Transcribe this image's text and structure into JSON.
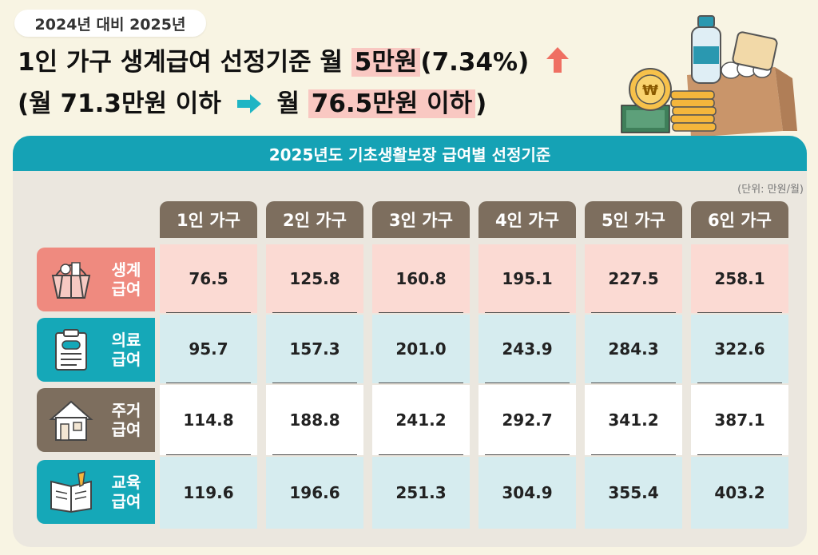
{
  "badge": "2024년 대비 2025년",
  "headline": {
    "line1_prefix": "1인 가구 생계급여 선정기준 월 ",
    "line1_highlight": "5만원",
    "line1_suffix": "(7.34%)",
    "line2_prefix": "(월 71.3만원 이하",
    "line2_mid": "월 ",
    "line2_highlight": "76.5만원 이하",
    "line2_suffix": ")"
  },
  "table_title": "2025년도 기초생활보장 급여별 선정기준",
  "unit_label": "(단위: 만원/월)",
  "columns": [
    "1인 가구",
    "2인 가구",
    "3인 가구",
    "4인 가구",
    "5인 가구",
    "6인 가구"
  ],
  "rows": [
    {
      "label_top": "생계",
      "label_bottom": "급여",
      "icon": "shopping-basket-icon",
      "label_color": "#ef8a7f",
      "cell_color": "#fbdad3",
      "values": [
        "76.5",
        "125.8",
        "160.8",
        "195.1",
        "227.5",
        "258.1"
      ]
    },
    {
      "label_top": "의료",
      "label_bottom": "급여",
      "icon": "medical-chart-icon",
      "label_color": "#15a8b8",
      "cell_color": "#d6ecef",
      "values": [
        "95.7",
        "157.3",
        "201.0",
        "243.9",
        "284.3",
        "322.6"
      ]
    },
    {
      "label_top": "주거",
      "label_bottom": "급여",
      "icon": "house-icon",
      "label_color": "#7d6e5e",
      "cell_color": "#ffffff",
      "values": [
        "114.8",
        "188.8",
        "241.2",
        "292.7",
        "341.2",
        "387.1"
      ]
    },
    {
      "label_top": "교육",
      "label_bottom": "급여",
      "icon": "open-book-icon",
      "label_color": "#15a8b8",
      "cell_color": "#d6ecef",
      "values": [
        "119.6",
        "196.6",
        "251.3",
        "304.9",
        "355.4",
        "403.2"
      ]
    }
  ],
  "colors": {
    "accent_teal": "#15a2b5",
    "header_brown": "#7d6e5e",
    "highlight_pink": "#f9c8c2",
    "up_arrow": "#ef6f62"
  }
}
